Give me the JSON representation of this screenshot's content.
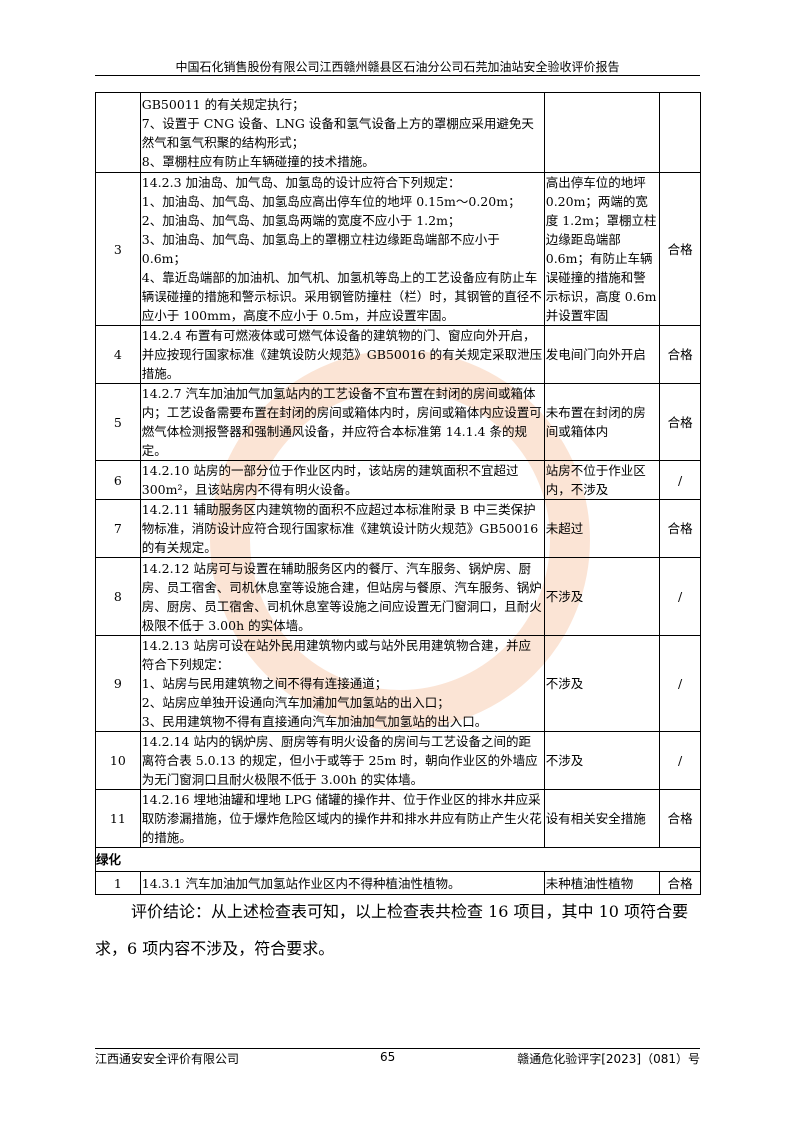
{
  "header": {
    "title": "中国石化销售股份有限公司江西赣州赣县区石油分公司石芫加油站安全验收评价报告"
  },
  "table": {
    "rows": [
      {
        "no": "",
        "content": "GB50011 的有关规定执行；\n7、设置于 CNG 设备、LNG 设备和氢气设备上方的罩棚应采用避免天然气和氢气积聚的结构形式；\n8、罩棚柱应有防止车辆碰撞的技术措施。",
        "result": "",
        "verdict": ""
      },
      {
        "no": "3",
        "content": "14.2.3 加油岛、加气岛、加氢岛的设计应符合下列规定：\n1、加油岛、加气岛、加氢岛应高出停车位的地坪 0.15m～0.20m；\n2、加油岛、加气岛、加氢岛两端的宽度不应小于 1.2m；\n3、加油岛、加气岛、加氢岛上的罩棚立柱边缘距岛端部不应小于 0.6m；\n4、靠近岛端部的加油机、加气机、加氢机等岛上的工艺设备应有防止车辆误碰撞的措施和警示标识。采用钢管防撞柱（栏）时，其钢管的直径不应小于 100mm，高度不应小于 0.5m，并应设置牢固。",
        "result": "高出停车位的地坪 0.20m；两端的宽度 1.2m；罩棚立柱边缘距岛端部 0.6m；有防止车辆误碰撞的措施和警示标识，高度 0.6m 并设置牢固",
        "verdict": "合格"
      },
      {
        "no": "4",
        "content": "14.2.4 布置有可燃液体或可燃气体设备的建筑物的门、窗应向外开启，并应按现行国家标准《建筑设防火规范》GB50016 的有关规定采取泄压措施。",
        "result": "发电间门向外开启",
        "verdict": "合格"
      },
      {
        "no": "5",
        "content": "14.2.7 汽车加油加气加氢站内的工艺设备不宜布置在封闭的房间或箱体内；工艺设备需要布置在封闭的房间或箱体内时，房间或箱体内应设置可燃气体检测报警器和强制通风设备，并应符合本标准第 14.1.4 条的规定。",
        "result": "未布置在封闭的房间或箱体内",
        "verdict": "合格"
      },
      {
        "no": "6",
        "content": "14.2.10 站房的一部分位于作业区内时，该站房的建筑面积不宜超过 300m²，且该站房内不得有明火设备。",
        "result": "站房不位于作业区内，不涉及",
        "verdict": "/"
      },
      {
        "no": "7",
        "content": "14.2.11 辅助服务区内建筑物的面积不应超过本标准附录 B 中三类保护物标准，消防设计应符合现行国家标准《建筑设计防火规范》GB50016 的有关规定。",
        "result": "未超过",
        "verdict": "合格"
      },
      {
        "no": "8",
        "content": "14.2.12 站房可与设置在辅助服务区内的餐厅、汽车服务、锅炉房、厨房、员工宿舍、司机休息室等设施合建，但站房与餐原、汽车服务、锅炉房、厨房、员工宿舍、司机休息室等设施之间应设置无门窗洞口，且耐火极限不低于 3.00h 的实体墙。",
        "result": "不涉及",
        "verdict": "/"
      },
      {
        "no": "9",
        "content": "14.2.13 站房可设在站外民用建筑物内或与站外民用建筑物合建，并应符合下列规定：\n1、站房与民用建筑物之间不得有连接通道；\n2、站房应单独开设通向汽车加浦加气加氢站的出入口；\n3、民用建筑物不得有直接通向汽车加油加气加氢站的出入口。",
        "result": "不涉及",
        "verdict": "/"
      },
      {
        "no": "10",
        "content": "14.2.14 站内的锅炉房、厨房等有明火设备的房间与工艺设备之间的距离符合表 5.0.13 的规定，但小于或等于 25m 时，朝向作业区的外墙应为无门窗洞口且耐火极限不低于 3.00h 的实体墙。",
        "result": "不涉及",
        "verdict": "/"
      },
      {
        "no": "11",
        "content": "14.2.16 埋地油罐和埋地 LPG 储罐的操作井、位于作业区的排水井应采取防渗漏措施，位于爆炸危险区域内的操作井和排水井应有防止产生火花的措施。",
        "result": "设有相关安全措施",
        "verdict": "合格"
      }
    ],
    "section": "绿化",
    "section_rows": [
      {
        "no": "1",
        "content": "14.3.1 汽车加油加气加氢站作业区内不得种植油性植物。",
        "result": "未种植油性植物",
        "verdict": "合格"
      }
    ]
  },
  "conclusion": "评价结论：从上述检查表可知，以上检查表共检查 16 项目，其中 10 项符合要求，6 项内容不涉及，符合要求。",
  "footer": {
    "company": "江西通安安全评价有限公司",
    "page": "65",
    "doc_no": "赣通危化验评字[2023]（081）号"
  },
  "watermark_color": "#f2a06a"
}
